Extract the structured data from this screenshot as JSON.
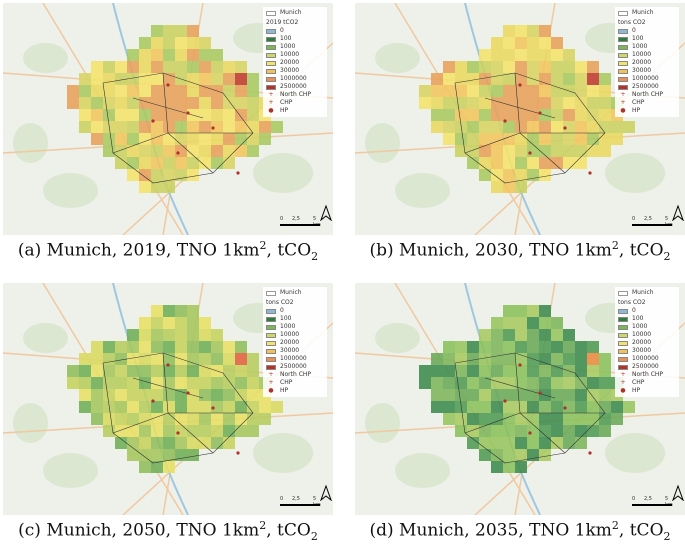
{
  "panels": [
    {
      "caption": {
        "label": "(a) Munich, 2019, TNO 1km",
        "sup": "2",
        "mid": ", tCO",
        "sub": "2"
      },
      "legend_title": "2019 tCO2",
      "palette": [
        "#f5e36a",
        "#e9d860",
        "#f2c55c",
        "#e8a05a",
        "#d8d463",
        "#c9d060",
        "#a8c85f"
      ],
      "hot": "#c0392b"
    },
    {
      "caption": {
        "label": "(b) Munich, 2030, TNO 1km",
        "sup": "2",
        "mid": ", tCO",
        "sub": "2"
      },
      "legend_title": "tons CO2",
      "palette": [
        "#f5e36a",
        "#e9d860",
        "#f2c55c",
        "#e8a05a",
        "#d8d463",
        "#c9d060",
        "#a8c85f"
      ],
      "hot": "#c0392b"
    },
    {
      "caption": {
        "label": "(c) Munich, 2050, TNO 1km",
        "sup": "2",
        "mid": ", tCO",
        "sub": "2"
      },
      "legend_title": "tons CO2",
      "palette": [
        "#d9d95f",
        "#c6d25d",
        "#b7cc5d",
        "#a5c65c",
        "#e7e063",
        "#8fbd5a",
        "#6fae56"
      ],
      "hot": "#e0603c"
    },
    {
      "caption": {
        "label": "(d) Munich, 2035, TNO 1km",
        "sup": "2",
        "mid": ", tCO",
        "sub": "2"
      },
      "legend_title": "tons CO2",
      "palette": [
        "#97c45c",
        "#8ac05b",
        "#7db55a",
        "#6aa856",
        "#4f9a52",
        "#a8c85f",
        "#3e8a4c"
      ],
      "hot": "#e88a3c"
    }
  ],
  "legend": {
    "layer_name": "Munich",
    "classes": [
      {
        "label": "0",
        "color": "#8fb8d6"
      },
      {
        "label": "100",
        "color": "#2f7d3a"
      },
      {
        "label": "1000",
        "color": "#7fb55a"
      },
      {
        "label": "10000",
        "color": "#c8d86a"
      },
      {
        "label": "20000",
        "color": "#f2e36a"
      },
      {
        "label": "30000",
        "color": "#f2c25a"
      },
      {
        "label": "1000000",
        "color": "#e8905a"
      },
      {
        "label": "2500000",
        "color": "#b8322a"
      }
    ],
    "points": [
      {
        "label": "North CHP",
        "symbol": "+"
      },
      {
        "label": "CHP",
        "symbol": "+"
      },
      {
        "label": "HP",
        "symbol": "●"
      }
    ]
  },
  "scale": {
    "t0": "0",
    "t1": "2,5",
    "t2": "5 km"
  },
  "colors": {
    "background": "#eef0ea",
    "river": "#9ec7e0",
    "road": "#f0c9a0",
    "boundary": "#333333"
  }
}
